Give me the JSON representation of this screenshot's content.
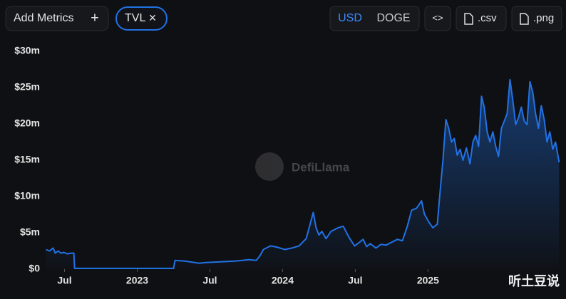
{
  "controls": {
    "add_metrics": "Add Metrics",
    "add_icon": "+",
    "metric": "TVL",
    "remove_icon": "×",
    "currency_active": "USD",
    "currency_other": "DOGE",
    "embed": "<>",
    "csv": ".csv",
    "png": ".png"
  },
  "watermarks": [
    "DefiLlama",
    "听土豆说"
  ],
  "chart_data": {
    "type": "line",
    "color": "#2172e5",
    "area": true,
    "x": [
      2022.373,
      2022.397,
      2022.422,
      2022.436,
      2022.456,
      2022.475,
      2022.495,
      2022.52,
      2022.544,
      2022.564,
      2022.569,
      2022.789,
      2023.034,
      2023.25,
      2023.26,
      2023.328,
      2023.426,
      2023.475,
      2023.574,
      2023.672,
      2023.77,
      2023.819,
      2023.843,
      2023.868,
      2023.917,
      2023.966,
      2024.015,
      2024.064,
      2024.113,
      2024.162,
      2024.196,
      2024.211,
      2024.23,
      2024.25,
      2024.27,
      2024.299,
      2024.333,
      2024.382,
      2024.417,
      2024.456,
      2024.495,
      2024.529,
      2024.554,
      2024.578,
      2024.603,
      2024.642,
      2024.676,
      2024.711,
      2024.75,
      2024.789,
      2024.824,
      2024.858,
      2024.887,
      2024.922,
      2024.956,
      2024.975,
      2025.005,
      2025.034,
      2025.064,
      2025.083,
      2025.103,
      2025.123,
      2025.142,
      2025.162,
      2025.181,
      2025.201,
      2025.221,
      2025.24,
      2025.265,
      2025.289,
      2025.309,
      2025.328,
      2025.348,
      2025.368,
      2025.387,
      2025.407,
      2025.426,
      2025.446,
      2025.466,
      2025.485,
      2025.505,
      2025.525,
      2025.544,
      2025.564,
      2025.583,
      2025.603,
      2025.623,
      2025.642,
      2025.662,
      2025.681,
      2025.701,
      2025.721,
      2025.74,
      2025.76,
      2025.779,
      2025.799,
      2025.819,
      2025.838,
      2025.858,
      2025.877,
      2025.902
    ],
    "values": [
      2.7,
      2.5,
      2.9,
      2.2,
      2.5,
      2.2,
      2.3,
      2.1,
      2.2,
      2.2,
      0.1,
      0.1,
      0.1,
      0.1,
      1.2,
      1.1,
      0.8,
      0.9,
      1.0,
      1.1,
      1.3,
      1.2,
      1.8,
      2.7,
      3.2,
      3.0,
      2.7,
      2.9,
      3.2,
      4.2,
      6.7,
      7.8,
      5.7,
      4.7,
      5.2,
      4.2,
      5.2,
      5.7,
      5.9,
      4.4,
      3.2,
      3.7,
      4.1,
      3.1,
      3.5,
      2.9,
      3.4,
      3.3,
      3.7,
      4.1,
      3.9,
      5.9,
      8.1,
      8.4,
      9.4,
      7.6,
      6.5,
      5.7,
      6.2,
      10.6,
      15.0,
      20.6,
      19.4,
      17.5,
      18.0,
      15.7,
      16.5,
      15.0,
      16.7,
      14.5,
      17.5,
      18.4,
      16.9,
      23.8,
      22.3,
      18.9,
      17.5,
      18.9,
      16.9,
      15.5,
      19.4,
      20.4,
      21.4,
      26.1,
      23.3,
      19.9,
      20.9,
      22.3,
      20.4,
      19.9,
      25.8,
      24.3,
      21.4,
      19.4,
      22.5,
      20.6,
      17.5,
      18.9,
      16.5,
      17.5,
      14.7
    ],
    "xlim": [
      2022.37,
      2025.91
    ],
    "xticks": [
      {
        "value": 2022.5,
        "label": "Jul"
      },
      2023,
      {
        "value": 2023.5,
        "label": "Jul"
      },
      2024,
      {
        "value": 2024.5,
        "label": "Jul"
      },
      2025
    ],
    "ylim": [
      0,
      30
    ],
    "yticks": [
      {
        "value": 0,
        "label": "$0"
      },
      {
        "value": 5,
        "label": "$5m"
      },
      {
        "value": 10,
        "label": "$10m"
      },
      {
        "value": 15,
        "label": "$15m"
      },
      {
        "value": 20,
        "label": "$20m"
      },
      {
        "value": 25,
        "label": "$25m"
      },
      {
        "value": 30,
        "label": "$30m"
      }
    ],
    "grid": false
  }
}
